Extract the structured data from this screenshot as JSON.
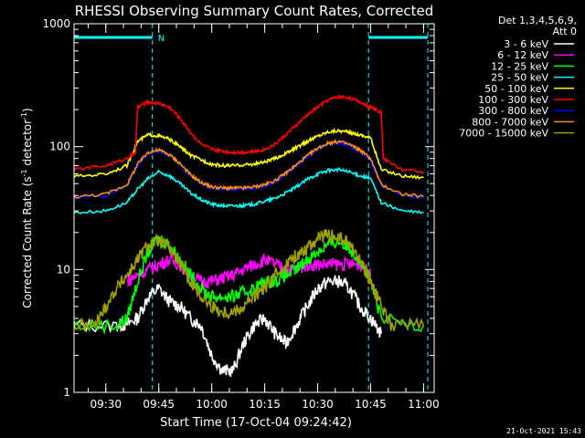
{
  "chart_data": {
    "type": "line",
    "title": "RHESSI Observing Summary Count Rates, Corrected",
    "xlabel": "Start Time (17-Oct-04 09:24:42)",
    "ylabel_pre": "Corrected Count Rate (s",
    "ylabel_sup1": "-1",
    "ylabel_mid": " detector",
    "ylabel_sup2": "-1",
    "ylabel_post": ")",
    "yscale": "log",
    "ylim": [
      1,
      1000
    ],
    "xlim": [
      9.35,
      11.05
    ],
    "y_ticks": [
      {
        "v": 1,
        "label": "1"
      },
      {
        "v": 10,
        "label": "10"
      },
      {
        "v": 100,
        "label": "100"
      },
      {
        "v": 1000,
        "label": "1000"
      }
    ],
    "x_ticks": [
      {
        "v": 9.5,
        "label": "09:30"
      },
      {
        "v": 9.75,
        "label": "09:45"
      },
      {
        "v": 10.0,
        "label": "10:00"
      },
      {
        "v": 10.25,
        "label": "10:15"
      },
      {
        "v": 10.5,
        "label": "10:30"
      },
      {
        "v": 10.75,
        "label": "10:45"
      },
      {
        "v": 11.0,
        "label": "11:00"
      }
    ],
    "legend": {
      "placement": "right",
      "header1": "Det 1,3,4,5,6,9,",
      "header2": "Att 0"
    },
    "attenuator_marker": "N",
    "night_intervals": [
      [
        9.35,
        9.72
      ],
      [
        10.74,
        11.02
      ]
    ],
    "event_lines": [
      9.72,
      10.74,
      11.02
    ],
    "series": [
      {
        "name": "3 - 6 keV",
        "color": "#ffffff",
        "x": [
          9.35,
          9.55,
          9.6,
          9.65,
          9.7,
          9.75,
          9.8,
          9.85,
          9.9,
          9.95,
          10.0,
          10.05,
          10.1,
          10.15,
          10.2,
          10.25,
          10.3,
          10.35,
          10.4,
          10.45,
          10.5,
          10.55,
          10.6,
          10.65,
          10.7,
          10.75,
          10.8
        ],
        "y": [
          3.5,
          3.5,
          3.6,
          4,
          6,
          7,
          5.5,
          5,
          4,
          3.5,
          2,
          1.5,
          1.5,
          2.5,
          3.5,
          4,
          3,
          2.5,
          3.5,
          5,
          7,
          8,
          8,
          7,
          5,
          4,
          3
        ]
      },
      {
        "name": "6 - 12 keV",
        "color": "#ff00ff",
        "x": [
          9.6,
          9.65,
          9.7,
          9.75,
          9.8,
          9.85,
          9.9,
          9.95,
          10.0,
          10.05,
          10.1,
          10.15,
          10.2,
          10.25,
          10.3,
          10.35,
          10.4,
          10.45,
          10.5,
          10.55,
          10.6,
          10.65,
          10.7,
          10.75
        ],
        "y": [
          8,
          9,
          10,
          11,
          12,
          11,
          9,
          8,
          8,
          8.5,
          9,
          10,
          11,
          12,
          11,
          10,
          10,
          11,
          11,
          11,
          11,
          11,
          11,
          9
        ]
      },
      {
        "name": "12 - 25 keV",
        "color": "#00ff00",
        "x": [
          9.35,
          9.55,
          9.6,
          9.65,
          9.7,
          9.75,
          9.8,
          9.85,
          9.9,
          9.95,
          10.0,
          10.05,
          10.1,
          10.15,
          10.2,
          10.25,
          10.3,
          10.35,
          10.4,
          10.45,
          10.5,
          10.55,
          10.6,
          10.65,
          10.7,
          10.75,
          10.8,
          11.0
        ],
        "y": [
          3.5,
          3.5,
          4,
          8,
          14,
          18,
          16,
          12,
          9,
          7,
          6,
          6,
          6,
          6.5,
          7,
          8,
          8,
          9,
          10,
          12,
          14,
          16,
          17,
          15,
          12,
          8,
          4,
          3.5
        ]
      },
      {
        "name": "25 - 50 keV",
        "color": "#00ffff",
        "x": [
          9.35,
          9.5,
          9.6,
          9.65,
          9.7,
          9.75,
          9.8,
          9.85,
          9.9,
          9.95,
          10.0,
          10.05,
          10.1,
          10.15,
          10.2,
          10.25,
          10.3,
          10.35,
          10.4,
          10.45,
          10.5,
          10.55,
          10.6,
          10.65,
          10.7,
          10.75,
          10.8,
          10.9,
          11.0
        ],
        "y": [
          29,
          30,
          35,
          45,
          55,
          62,
          58,
          50,
          42,
          37,
          34,
          33,
          33,
          33,
          34,
          36,
          38,
          42,
          47,
          54,
          60,
          64,
          65,
          62,
          58,
          55,
          35,
          30,
          29
        ]
      },
      {
        "name": "50 - 100 keV",
        "color": "#ffff00",
        "x": [
          9.35,
          9.5,
          9.6,
          9.65,
          9.7,
          9.75,
          9.8,
          9.85,
          9.9,
          9.95,
          10.0,
          10.05,
          10.1,
          10.15,
          10.2,
          10.25,
          10.3,
          10.35,
          10.4,
          10.45,
          10.5,
          10.55,
          10.6,
          10.65,
          10.7,
          10.75,
          10.8,
          10.9,
          11.0
        ],
        "y": [
          57,
          60,
          70,
          110,
          125,
          122,
          115,
          100,
          85,
          78,
          72,
          70,
          70,
          71,
          72,
          75,
          80,
          88,
          98,
          110,
          122,
          132,
          135,
          130,
          125,
          118,
          65,
          58,
          56
        ]
      },
      {
        "name": "100 - 300 keV",
        "color": "#ff0000",
        "x": [
          9.35,
          9.5,
          9.6,
          9.64,
          9.65,
          9.7,
          9.75,
          9.8,
          9.85,
          9.9,
          9.95,
          10.0,
          10.05,
          10.1,
          10.15,
          10.2,
          10.25,
          10.3,
          10.35,
          10.4,
          10.45,
          10.5,
          10.55,
          10.6,
          10.65,
          10.7,
          10.75,
          10.8,
          10.81,
          10.9,
          11.0
        ],
        "y": [
          65,
          70,
          80,
          90,
          210,
          230,
          225,
          210,
          170,
          130,
          105,
          95,
          92,
          90,
          90,
          91,
          95,
          105,
          125,
          150,
          180,
          210,
          240,
          255,
          250,
          230,
          210,
          190,
          80,
          65,
          62
        ]
      },
      {
        "name": "300 - 800 keV",
        "color": "#0000ff",
        "x": [
          9.35,
          9.5,
          9.6,
          9.65,
          9.7,
          9.75,
          9.8,
          9.85,
          9.9,
          9.95,
          10.0,
          10.05,
          10.1,
          10.15,
          10.2,
          10.25,
          10.3,
          10.35,
          10.4,
          10.45,
          10.5,
          10.55,
          10.6,
          10.65,
          10.7,
          10.75,
          10.8,
          10.9,
          11.0
        ],
        "y": [
          38,
          40,
          48,
          70,
          88,
          92,
          85,
          72,
          58,
          50,
          46,
          45,
          45,
          45,
          46,
          48,
          52,
          60,
          70,
          82,
          95,
          105,
          108,
          102,
          92,
          78,
          48,
          40,
          38
        ]
      },
      {
        "name": "800 - 7000 keV",
        "color": "#ff8c00",
        "x": [
          9.35,
          9.5,
          9.6,
          9.65,
          9.7,
          9.75,
          9.8,
          9.85,
          9.9,
          9.95,
          10.0,
          10.05,
          10.1,
          10.15,
          10.2,
          10.25,
          10.3,
          10.35,
          10.4,
          10.45,
          10.5,
          10.55,
          10.6,
          10.65,
          10.7,
          10.75,
          10.8,
          10.9,
          11.0
        ],
        "y": [
          39,
          41,
          49,
          72,
          90,
          94,
          86,
          73,
          59,
          51,
          47,
          46,
          46,
          46,
          47,
          49,
          53,
          61,
          71,
          84,
          97,
          107,
          110,
          104,
          94,
          80,
          49,
          41,
          39
        ]
      },
      {
        "name": "7000 - 15000 keV",
        "color": "#a0a000",
        "x": [
          9.35,
          9.45,
          9.5,
          9.55,
          9.6,
          9.65,
          9.7,
          9.75,
          9.8,
          9.85,
          9.9,
          9.95,
          10.0,
          10.05,
          10.1,
          10.15,
          10.2,
          10.25,
          10.3,
          10.35,
          10.4,
          10.45,
          10.5,
          10.55,
          10.6,
          10.65,
          10.7,
          10.75,
          10.8,
          10.85,
          11.0
        ],
        "y": [
          3.5,
          3.5,
          5,
          7,
          9,
          12,
          16,
          17,
          15,
          11,
          8,
          6,
          5,
          4.5,
          4.5,
          5,
          6,
          7,
          9,
          11,
          13,
          15,
          18,
          19,
          18,
          16,
          12,
          8,
          5,
          3.5,
          3.5
        ]
      }
    ]
  },
  "footer": {
    "date": "21-Oct-2021 15:43"
  }
}
